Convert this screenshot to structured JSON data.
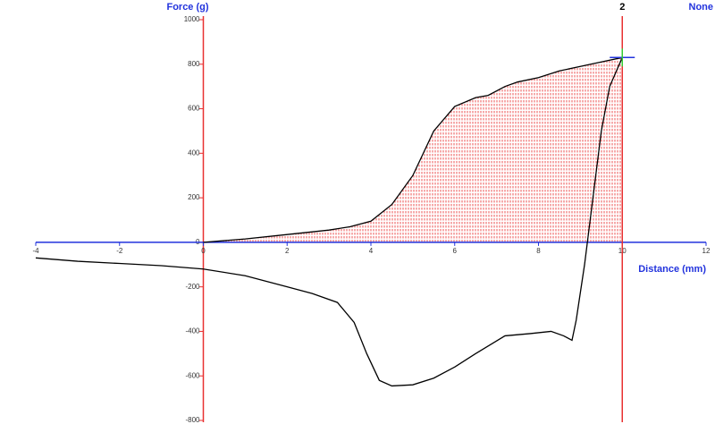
{
  "chart_data": {
    "type": "line",
    "y_label": "Force (g)",
    "x_label": "Distance (mm)",
    "y2_label": "None",
    "xlim": [
      -4,
      12
    ],
    "xticks": [
      -4,
      -2,
      0,
      2,
      4,
      6,
      8,
      10,
      12
    ],
    "ylim": [
      -800,
      1000
    ],
    "yticks": [
      -800,
      -600,
      -400,
      -200,
      0,
      200,
      400,
      600,
      800,
      1000
    ],
    "marker": {
      "x": 10,
      "label": "2"
    },
    "series": [
      {
        "color": "#000000",
        "fill": "#ee5555",
        "x": [
          0,
          1,
          2,
          3,
          3.5,
          4,
          4.5,
          5,
          5.5,
          6,
          6.5,
          6.8,
          7.2,
          7.5,
          8,
          8.5,
          9,
          9.5,
          10
        ],
        "values": [
          0,
          15,
          35,
          55,
          70,
          95,
          170,
          300,
          500,
          610,
          650,
          660,
          700,
          720,
          740,
          770,
          790,
          810,
          830
        ]
      },
      {
        "color": "#000000",
        "x": [
          10,
          9.7,
          9.5,
          9.3,
          9.1,
          8.9,
          8.8,
          8.6,
          8.3,
          7.8,
          7.2,
          6.5,
          6,
          5.5,
          5,
          4.5,
          4.2,
          3.9,
          3.6,
          3.2,
          2.6,
          2,
          1,
          0,
          -1,
          -2,
          -3,
          -4
        ],
        "values": [
          830,
          700,
          500,
          200,
          -100,
          -350,
          -440,
          -420,
          -400,
          -410,
          -420,
          -500,
          -560,
          -610,
          -640,
          -645,
          -620,
          -500,
          -360,
          -270,
          -230,
          -200,
          -150,
          -120,
          -105,
          -95,
          -85,
          -70
        ]
      }
    ]
  }
}
